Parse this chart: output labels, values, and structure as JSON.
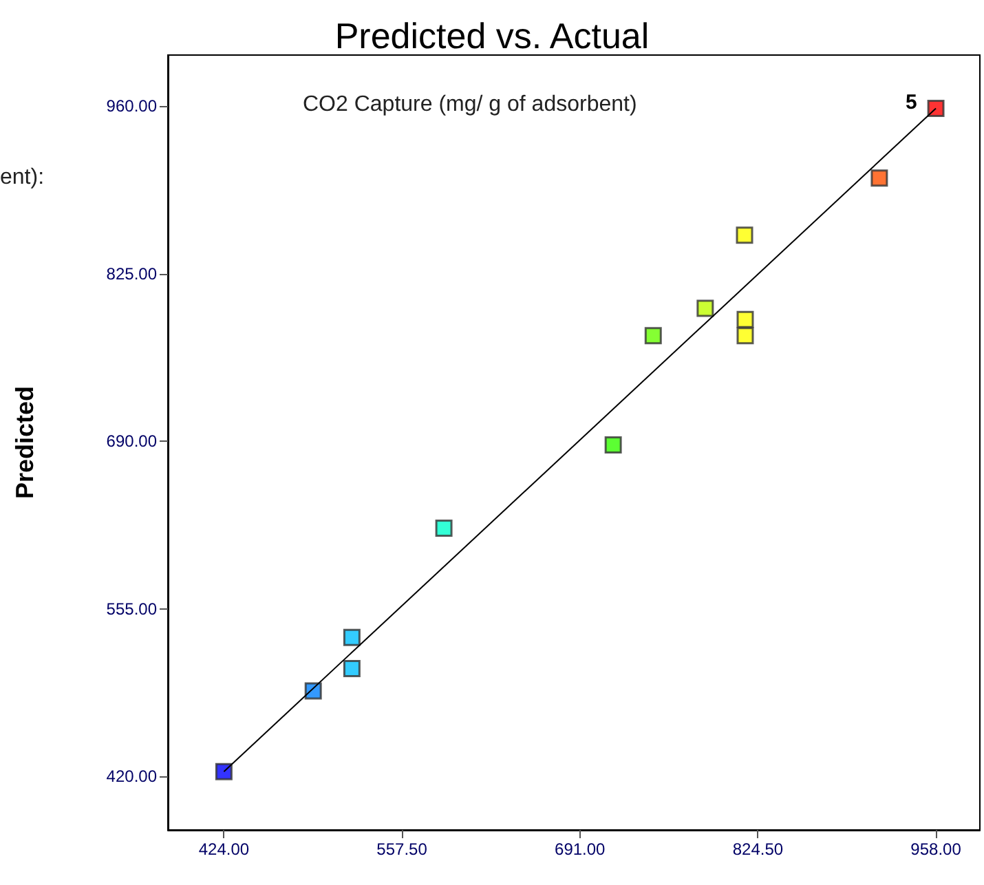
{
  "chart_data": {
    "type": "scatter",
    "title": "Predicted vs. Actual",
    "ylabel": "Predicted",
    "annotations": [
      "CO2 Capture (mg/ g of adsorbent)",
      "ent):",
      {
        "text": "5",
        "x": 958,
        "y": 958
      }
    ],
    "x": [
      424,
      491,
      520,
      520,
      589,
      716,
      746,
      785,
      814.5,
      815,
      815,
      915.6,
      958
    ],
    "series": [
      {
        "marker": "square",
        "values": [
          424,
          489,
          532,
          507,
          620,
          687,
          775,
          797,
          856,
          788,
          775,
          902,
          958
        ],
        "colors": [
          "#0000ff",
          "#0080ff",
          "#00bfff",
          "#00bfff",
          "#00ffcc",
          "#33ff00",
          "#66ff00",
          "#bfff00",
          "#ffff00",
          "#ffff00",
          "#ffff00",
          "#ff5000",
          "#ff0000"
        ]
      },
      {
        "type": "line",
        "marker": "none",
        "x": [
          424,
          958
        ],
        "values": [
          424,
          958
        ],
        "color": "#000000"
      }
    ],
    "grid": false,
    "xlim": [
      382,
      991
    ],
    "ylim": [
      377,
      1001
    ],
    "xticks": [
      {
        "value": 424,
        "label": "424.00"
      },
      {
        "value": 557.5,
        "label": "557.50"
      },
      {
        "value": 691,
        "label": "691.00"
      },
      {
        "value": 824.5,
        "label": "824.50"
      },
      {
        "value": 958,
        "label": "958.00"
      }
    ],
    "yticks": [
      {
        "value": 420,
        "label": "420.00"
      },
      {
        "value": 555,
        "label": "555.00"
      },
      {
        "value": 690,
        "label": "690.00"
      },
      {
        "value": 825,
        "label": "825.00"
      },
      {
        "value": 960,
        "label": "960.00"
      }
    ]
  }
}
